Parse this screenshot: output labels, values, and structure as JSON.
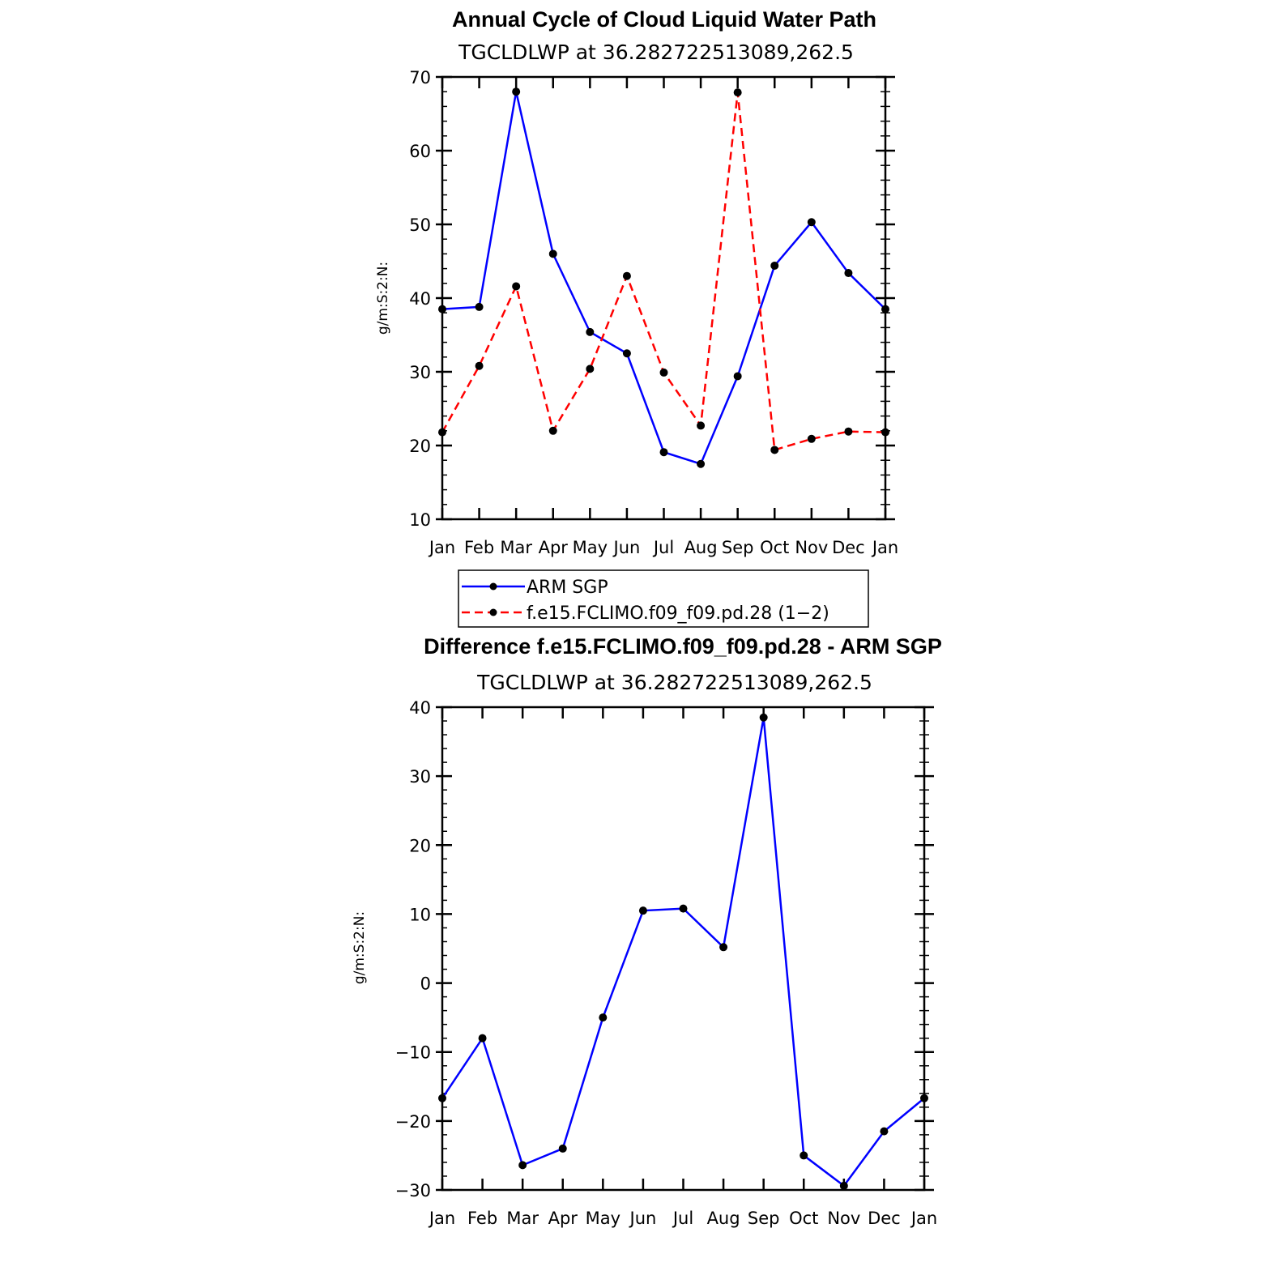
{
  "chart_data": [
    {
      "type": "line",
      "title": "Annual Cycle of Cloud Liquid Water Path",
      "subtitle": "TGCLDLWP  at  36.282722513089,262.5",
      "ylabel": "g/m:S:2:N:",
      "xlabel": "",
      "categories": [
        "Jan",
        "Feb",
        "Mar",
        "Apr",
        "May",
        "Jun",
        "Jul",
        "Aug",
        "Sep",
        "Oct",
        "Nov",
        "Dec",
        "Jan"
      ],
      "ylim": [
        10,
        70
      ],
      "yticks": [
        10,
        20,
        30,
        40,
        50,
        60,
        70
      ],
      "grid": false,
      "legend_position": "below",
      "series": [
        {
          "name": "ARM SGP",
          "color": "#0000ff",
          "dash": "solid",
          "values": [
            38.5,
            38.8,
            68.0,
            46.0,
            35.4,
            32.5,
            19.1,
            17.5,
            29.4,
            44.4,
            50.3,
            43.4,
            38.5
          ]
        },
        {
          "name": "f.e15.FCLIMO.f09_f09.pd.28 (1−2)",
          "color": "#ff0000",
          "dash": "dashed",
          "values": [
            21.8,
            30.8,
            41.6,
            22.0,
            30.4,
            43.0,
            29.9,
            22.7,
            67.9,
            19.4,
            20.9,
            21.9,
            21.8
          ]
        }
      ]
    },
    {
      "type": "line",
      "title": "Difference f.e15.FCLIMO.f09_f09.pd.28 - ARM SGP",
      "subtitle": "TGCLDLWP  at  36.282722513089,262.5",
      "ylabel": "g/m:S:2:N:",
      "xlabel": "",
      "categories": [
        "Jan",
        "Feb",
        "Mar",
        "Apr",
        "May",
        "Jun",
        "Jul",
        "Aug",
        "Sep",
        "Oct",
        "Nov",
        "Dec",
        "Jan"
      ],
      "ylim": [
        -30,
        40
      ],
      "yticks": [
        -30,
        -20,
        -10,
        0,
        10,
        20,
        30,
        40
      ],
      "ytick_labels": [
        "−30",
        "−20",
        "−10",
        "0",
        "10",
        "20",
        "30",
        "40"
      ],
      "grid": false,
      "series": [
        {
          "name": "Difference",
          "color": "#0000ff",
          "dash": "solid",
          "values": [
            -16.7,
            -8.0,
            -26.4,
            -24.0,
            -5.0,
            10.5,
            10.8,
            5.2,
            38.5,
            -25.0,
            -29.4,
            -21.5,
            -16.7
          ]
        }
      ]
    }
  ]
}
